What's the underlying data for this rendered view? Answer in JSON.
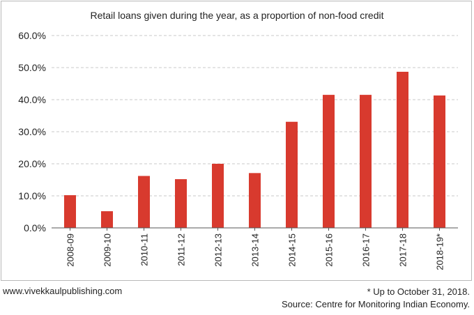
{
  "chart_data": {
    "type": "bar",
    "title": "Retail loans given during the year, as a proportion of non-food credit",
    "categories": [
      "2008-09",
      "2009-10",
      "2010-11",
      "2011-12",
      "2012-13",
      "2013-14",
      "2014-15",
      "2015-16",
      "2016-17",
      "2017-18",
      "2018-19*"
    ],
    "values": [
      10.2,
      5.2,
      16.2,
      15.2,
      20.0,
      17.1,
      33.1,
      41.5,
      41.5,
      48.7,
      41.3
    ],
    "y_ticks": [
      "0.0%",
      "10.0%",
      "20.0%",
      "30.0%",
      "40.0%",
      "50.0%",
      "60.0%"
    ],
    "ylim": [
      0,
      60
    ],
    "grid": "horizontal-dashed",
    "bar_color": "#d83a2e",
    "xlabel": "",
    "ylabel": ""
  },
  "footer": {
    "website": "www.vivekkaulpublishing.com",
    "note": "* Up to October 31, 2018.",
    "source": "Source: Centre for Monitoring Indian Economy."
  }
}
